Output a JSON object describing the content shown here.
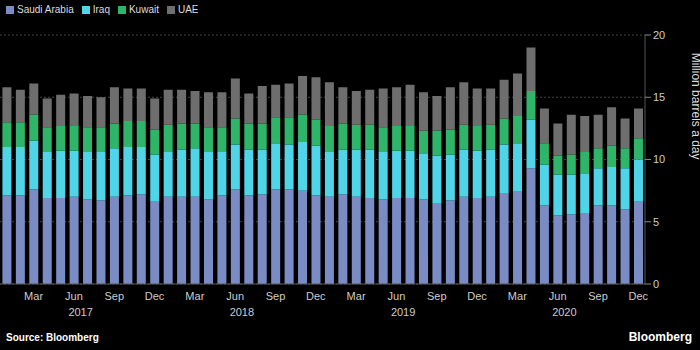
{
  "chart_data": {
    "type": "bar",
    "stacked": true,
    "grid": true,
    "legend": "upper left",
    "source": "Source: Bloomberg",
    "brand": "Bloomberg",
    "y_label": "Million barrels a day",
    "ylim": [
      0,
      20
    ],
    "yticks": [
      0,
      5,
      10,
      15,
      20
    ],
    "categories": [
      null,
      null,
      "Mar",
      null,
      null,
      "Jun",
      null,
      null,
      "Sep",
      null,
      null,
      "Dec",
      null,
      null,
      "Mar",
      null,
      null,
      "Jun",
      null,
      null,
      "Sep",
      null,
      null,
      "Dec",
      null,
      null,
      "Mar",
      null,
      null,
      "Jun",
      null,
      null,
      "Sep",
      null,
      null,
      "Dec",
      null,
      null,
      "Mar",
      null,
      null,
      "Jun",
      null,
      null,
      "Sep",
      null,
      null,
      "Dec"
    ],
    "x_groups": [
      {
        "label": "2017",
        "count": 12
      },
      {
        "label": "2018",
        "count": 12
      },
      {
        "label": "2019",
        "count": 12
      },
      {
        "label": "2020",
        "count": 12
      }
    ],
    "series": [
      {
        "name": "Saudi Arabia",
        "color": "#7b8cc4",
        "values": [
          7.1,
          7.1,
          7.6,
          6.9,
          6.9,
          7.0,
          6.8,
          6.7,
          7.0,
          7.1,
          7.2,
          6.6,
          7.0,
          7.0,
          7.0,
          6.8,
          7.1,
          7.6,
          7.1,
          7.2,
          7.6,
          7.6,
          7.5,
          7.1,
          7.0,
          7.2,
          7.0,
          6.9,
          6.8,
          6.9,
          6.9,
          6.8,
          6.5,
          6.7,
          7.0,
          6.9,
          7.0,
          7.3,
          7.4,
          9.3,
          6.3,
          5.5,
          5.6,
          5.7,
          6.3,
          6.3,
          6.0,
          6.6
        ]
      },
      {
        "name": "Iraq",
        "color": "#4fd4e8",
        "values": [
          3.9,
          3.9,
          3.9,
          3.7,
          3.8,
          3.7,
          3.8,
          3.9,
          3.9,
          3.9,
          3.8,
          3.8,
          3.6,
          3.8,
          3.9,
          3.8,
          3.5,
          3.6,
          3.7,
          3.6,
          3.7,
          3.6,
          3.9,
          4.0,
          3.6,
          3.6,
          3.8,
          3.9,
          3.8,
          3.8,
          3.8,
          3.7,
          3.8,
          3.7,
          3.8,
          3.8,
          3.8,
          3.9,
          3.9,
          3.9,
          3.3,
          3.3,
          3.2,
          3.2,
          3.0,
          3.1,
          3.3,
          3.4
        ]
      },
      {
        "name": "Kuwait",
        "color": "#2fb56a",
        "values": [
          2.0,
          2.0,
          2.1,
          2.0,
          2.0,
          2.0,
          2.0,
          2.0,
          2.0,
          2.1,
          2.1,
          2.0,
          2.2,
          2.1,
          2.0,
          2.0,
          2.0,
          2.1,
          2.1,
          2.1,
          2.1,
          2.2,
          2.2,
          2.1,
          2.1,
          2.1,
          2.0,
          2.0,
          2.0,
          2.0,
          2.0,
          1.8,
          2.0,
          2.0,
          2.0,
          2.0,
          2.0,
          2.1,
          2.2,
          2.3,
          1.7,
          1.5,
          1.6,
          1.7,
          1.6,
          1.7,
          1.6,
          1.7
        ]
      },
      {
        "name": "UAE",
        "color": "#6e6e6e",
        "values": [
          2.8,
          2.6,
          2.5,
          2.3,
          2.5,
          2.6,
          2.5,
          2.4,
          2.9,
          2.6,
          2.6,
          2.5,
          2.8,
          2.7,
          2.6,
          2.8,
          2.8,
          3.2,
          2.4,
          3.0,
          2.6,
          2.7,
          3.1,
          3.4,
          3.5,
          2.9,
          2.7,
          2.8,
          3.1,
          3.1,
          3.3,
          3.1,
          2.8,
          3.4,
          3.4,
          3.0,
          2.9,
          3.1,
          3.4,
          3.5,
          2.8,
          2.6,
          3.2,
          2.9,
          2.7,
          3.1,
          2.4,
          2.4
        ]
      }
    ]
  }
}
